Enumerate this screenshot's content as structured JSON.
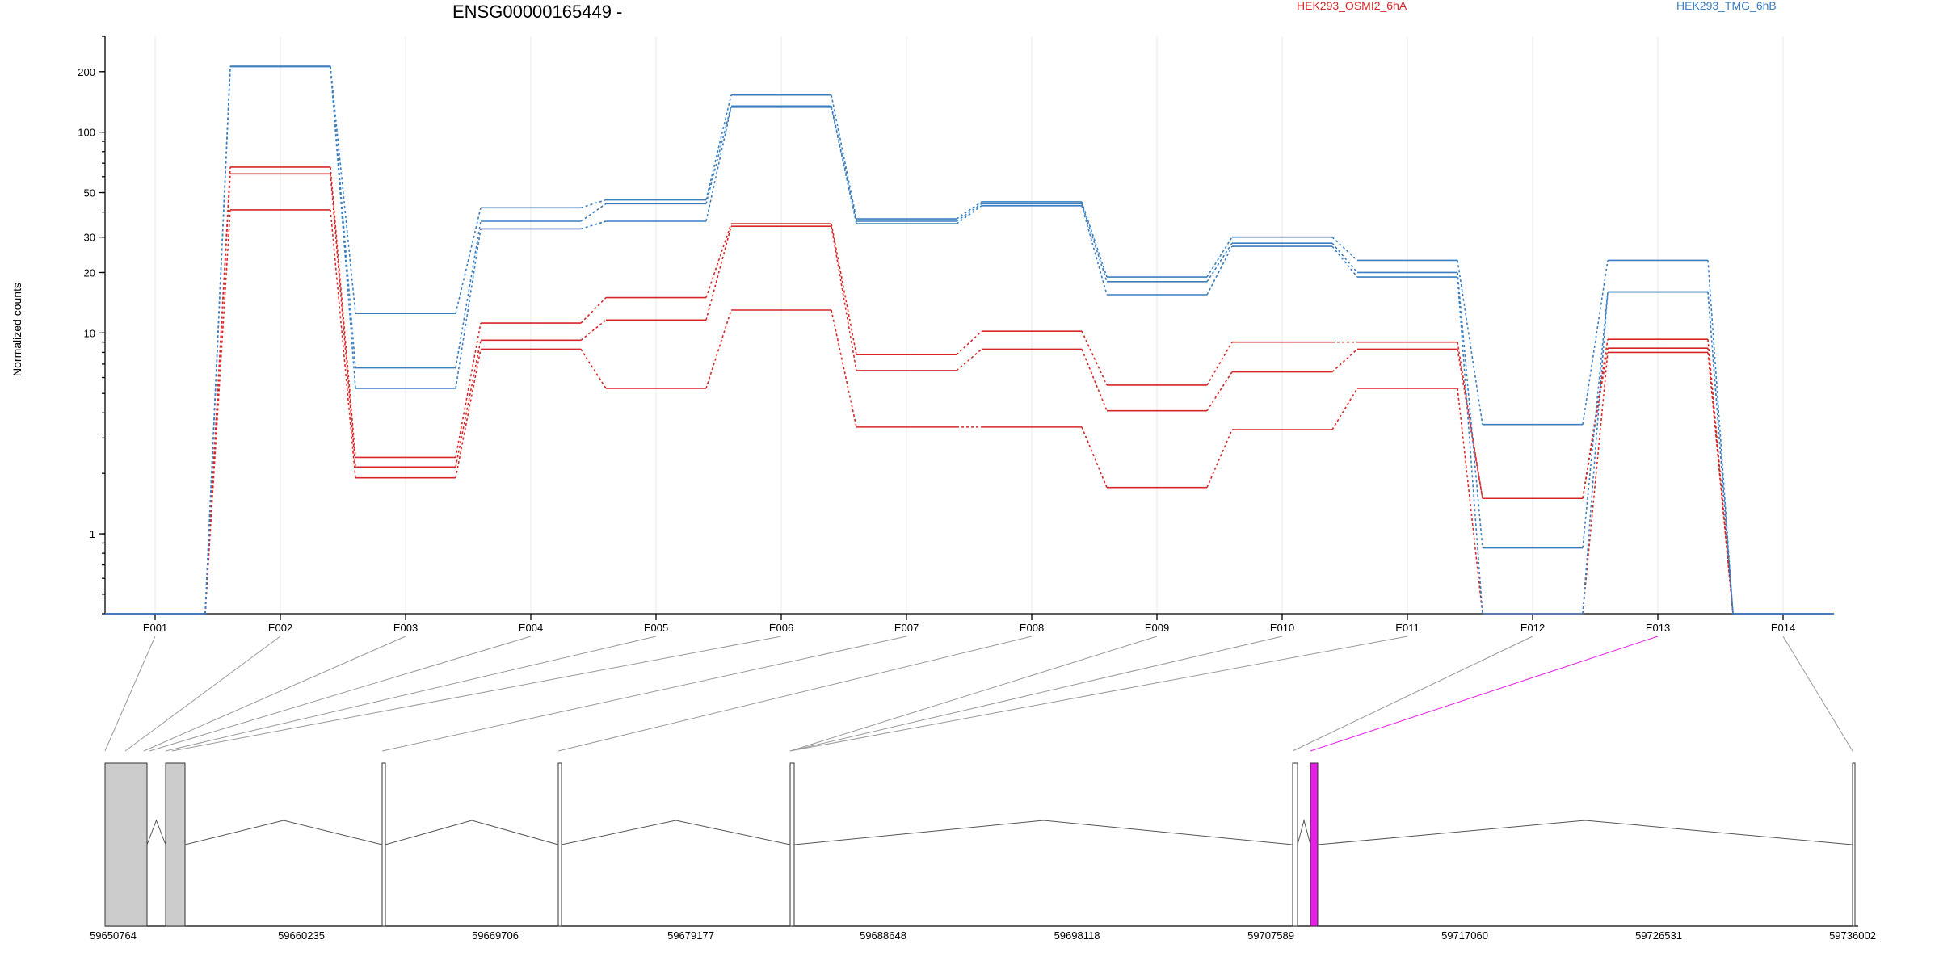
{
  "chart_data": {
    "type": "line",
    "title": "ENSG00000165449 -",
    "ylabel": "Normalized counts",
    "xlabel": "",
    "yscale": "log",
    "ylim": [
      0.4,
      300
    ],
    "yticks": [
      1,
      10,
      20,
      30,
      50,
      100,
      200
    ],
    "grid": true,
    "legend_position": "top",
    "colors": {
      "HEK293_OSMI2_6hA": "#d62728",
      "HEK293_TMG_6hB": "#3a7ebf",
      "highlight": "#e81de8"
    },
    "categories": [
      "E001",
      "E002",
      "E003",
      "E004",
      "E005",
      "E006",
      "E007",
      "E008",
      "E009",
      "E010",
      "E011",
      "E012",
      "E013",
      "E014"
    ],
    "groups": [
      {
        "name": "HEK293_OSMI2_6hA",
        "color": "#d62728",
        "series": [
          {
            "values": [
              0.4,
              67,
              2.4,
              11.2,
              15,
              35,
              7.8,
              10.2,
              5.5,
              9,
              9,
              1.5,
              9.3,
              0.4
            ]
          },
          {
            "values": [
              0.4,
              62,
              2.15,
              9.2,
              11.6,
              34,
              6.5,
              8.3,
              4.1,
              6.4,
              8.3,
              1.5,
              8.4,
              0.4
            ]
          },
          {
            "values": [
              0.4,
              41,
              1.9,
              8.3,
              5.3,
              13,
              3.4,
              3.4,
              1.7,
              3.3,
              5.3,
              0.4,
              8.0,
              0.4
            ]
          }
        ]
      },
      {
        "name": "HEK293_TMG_6hB",
        "color": "#3a7ebf",
        "series": [
          {
            "values": [
              0.4,
              213,
              12.5,
              42,
              46,
              153,
              37,
              45,
              19,
              30,
              23,
              3.5,
              23,
              0.4
            ]
          },
          {
            "values": [
              0.4,
              212,
              6.7,
              36,
              44,
              135,
              36,
              44,
              18,
              28,
              20,
              0.85,
              16,
              0.4
            ]
          },
          {
            "values": [
              0.4,
              212,
              5.3,
              33,
              36,
              133,
              35,
              43,
              15.5,
              27,
              19,
              0.4,
              16,
              0.4
            ]
          }
        ]
      }
    ],
    "gene_model": {
      "coordinate_labels": [
        "59650764",
        "59660235",
        "59669706",
        "59679177",
        "59688648",
        "59698118",
        "59707589",
        "59717060",
        "59726531",
        "59736002"
      ],
      "highlighted_exon": "E013"
    }
  }
}
